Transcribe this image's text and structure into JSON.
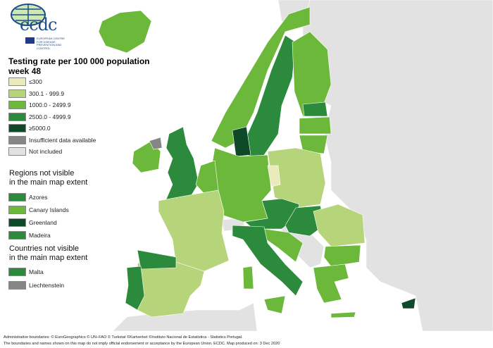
{
  "logo": {
    "text": "ecdc",
    "subtitle": "EUROPEAN CENTRE FOR DISEASE PREVENTION AND CONTROL"
  },
  "legend": {
    "title_line1": "Testing rate per 100 000 population",
    "title_line2": "week 48",
    "classes": [
      {
        "label": "≤300",
        "color": "#ebeabd"
      },
      {
        "label": "300.1 - 999.9",
        "color": "#b6d57a"
      },
      {
        "label": "1000.0 - 2499.9",
        "color": "#6bb83a"
      },
      {
        "label": "2500.0 - 4999.9",
        "color": "#2c8a3c"
      },
      {
        "label": "≥5000.0",
        "color": "#0e4a27"
      },
      {
        "label": "Insufficient data available",
        "color": "#868686"
      },
      {
        "label": "Not included",
        "color": "#e2e2e2"
      }
    ]
  },
  "regions": {
    "title_line1": "Regions not visible",
    "title_line2": "in the main map extent",
    "items": [
      {
        "label": "Azores",
        "color": "#2c8a3c"
      },
      {
        "label": "Canary Islands",
        "color": "#6bb83a"
      },
      {
        "label": "Greenland",
        "color": "#0e4a27"
      },
      {
        "label": "Madeira",
        "color": "#2c8a3c"
      }
    ]
  },
  "countries": {
    "title_line1": "Countries not visible",
    "title_line2": "in the main map extent",
    "items": [
      {
        "label": "Malta",
        "color": "#2c8a3c"
      },
      {
        "label": "Liechtenstein",
        "color": "#868686"
      }
    ]
  },
  "footer": {
    "line1": "Administrative boundaries: © EuroGeographics © UN–FAO © Turkstat ©Kartverket ©Instituto Nacional de Estatística - Statistics Portugal.",
    "line2": "The boundaries and names shown on this map do not imply official endorsement or acceptance by the European Union. ECDC. Map produced on: 3 Dec 2020"
  }
}
